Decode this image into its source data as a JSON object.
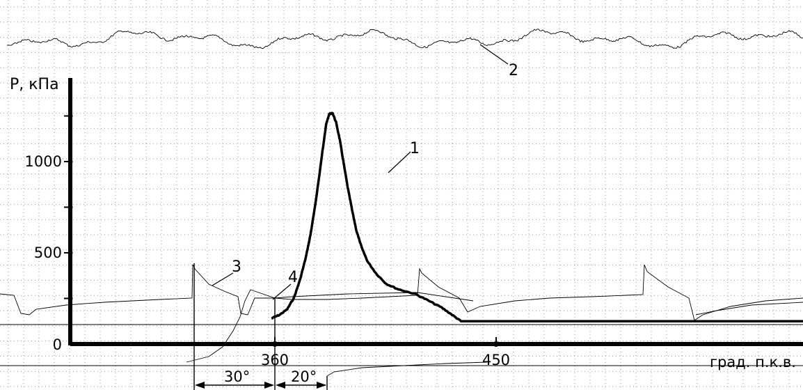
{
  "chart_data": {
    "type": "line",
    "ylabel": "P, кПа",
    "xlabel": "град. п.к.в.",
    "x_ticks": [
      {
        "value": 360,
        "label": "360"
      },
      {
        "value": 450,
        "label": "450"
      }
    ],
    "y_ticks": [
      {
        "value": 0,
        "label": "0"
      },
      {
        "value": 250,
        "label": ""
      },
      {
        "value": 500,
        "label": "500"
      },
      {
        "value": 750,
        "label": ""
      },
      {
        "value": 1000,
        "label": "1000"
      },
      {
        "value": 1250,
        "label": ""
      }
    ],
    "xlim": [
      358,
      470
    ],
    "ylim": [
      0,
      1420
    ],
    "grid": true,
    "series": [
      {
        "label_number": "1",
        "color": "#000000",
        "x": [
          358.6,
          361.9,
          365.0,
          367.8,
          370.3,
          372.6,
          374.5,
          376.3,
          377.9,
          379.4,
          380.8,
          382.1,
          383.5,
          384.9,
          386.4,
          388.0,
          389.6,
          391.4,
          393.2,
          395.4,
          397.8,
          401.3,
          405.3,
          410.2,
          417.0,
          422.1,
          427.8,
          432.1,
          435.7
        ],
        "y": [
          140,
          160,
          190,
          255,
          355,
          475,
          600,
          750,
          905,
          1060,
          1200,
          1260,
          1265,
          1215,
          1120,
          990,
          860,
          735,
          620,
          525,
          450,
          385,
          330,
          300,
          275,
          240,
          200,
          160,
          125
        ]
      }
    ],
    "annotations": [
      {
        "id": "curve-1",
        "text": "1"
      },
      {
        "id": "curve-2",
        "text": "2"
      },
      {
        "id": "curve-3",
        "text": "3"
      },
      {
        "id": "curve-4",
        "text": "4"
      },
      {
        "id": "interval-30",
        "text": "30°"
      },
      {
        "id": "interval-20",
        "text": "20°"
      }
    ]
  }
}
